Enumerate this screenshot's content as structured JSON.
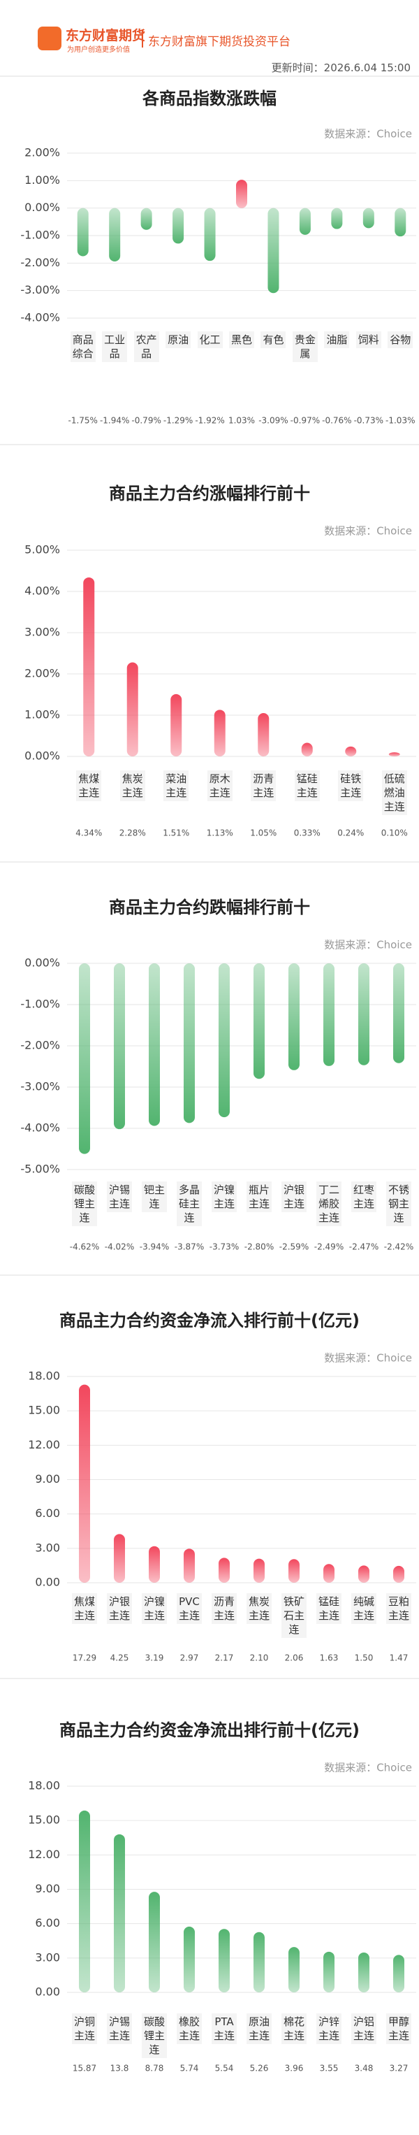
{
  "header": {
    "brand": "东方财富期货",
    "slogan": "为用户创造更多价值",
    "platform": "东方财富旗下期货投资平台",
    "update_time": "更新时间：2026.6.04 15:00"
  },
  "chart_data": [
    {
      "type": "bar",
      "title": "各商品指数涨跌幅",
      "source": "数据来源：Choice",
      "categories": [
        "商品综合",
        "工业品",
        "农产品",
        "原油",
        "化工",
        "黑色",
        "有色",
        "贵金属",
        "油脂",
        "饲料",
        "谷物"
      ],
      "values": [
        -1.75,
        -1.94,
        -0.79,
        -1.29,
        -1.92,
        1.03,
        -3.09,
        -0.97,
        -0.76,
        -0.73,
        -1.03
      ],
      "value_labels": [
        "-1.75%",
        "-1.94%",
        "-0.79%",
        "-1.29%",
        "-1.92%",
        "1.03%",
        "-3.09%",
        "-0.97%",
        "-0.76%",
        "-0.73%",
        "-1.03%"
      ],
      "colors": [
        "#52b46f",
        "#52b46f",
        "#52b46f",
        "#52b46f",
        "#52b46f",
        "#f2475d",
        "#52b46f",
        "#52b46f",
        "#52b46f",
        "#52b46f",
        "#52b46f"
      ],
      "ylim": [
        -4,
        2
      ],
      "yticks": [
        {
          "value": 2,
          "label": "2.00%"
        },
        {
          "value": 1,
          "label": "1.00%"
        },
        {
          "value": 0,
          "label": "0.00%"
        },
        {
          "value": -1,
          "label": "-1.00%"
        },
        {
          "value": -2,
          "label": "-2.00%"
        },
        {
          "value": -3,
          "label": "-3.00%"
        },
        {
          "value": -4,
          "label": "-4.00%"
        }
      ],
      "grid": true
    },
    {
      "type": "bar",
      "title": "商品主力合约涨幅排行前十",
      "source": "数据来源：Choice",
      "categories": [
        "焦煤主连",
        "焦炭主连",
        "菜油主连",
        "原木主连",
        "沥青主连",
        "锰硅主连",
        "硅铁主连",
        "低硫燃油主连"
      ],
      "values": [
        4.34,
        2.28,
        1.51,
        1.13,
        1.05,
        0.33,
        0.24,
        0.1
      ],
      "value_labels": [
        "4.34%",
        "2.28%",
        "1.51%",
        "1.13%",
        "1.05%",
        "0.33%",
        "0.24%",
        "0.10%"
      ],
      "color": "#f2475d",
      "ylim": [
        0,
        5
      ],
      "yticks": [
        {
          "value": 5,
          "label": "5.00%"
        },
        {
          "value": 4,
          "label": "4.00%"
        },
        {
          "value": 3,
          "label": "3.00%"
        },
        {
          "value": 2,
          "label": "2.00%"
        },
        {
          "value": 1,
          "label": "1.00%"
        },
        {
          "value": 0,
          "label": "0.00%"
        }
      ],
      "grid": true
    },
    {
      "type": "bar",
      "title": "商品主力合约跌幅排行前十",
      "source": "数据来源：Choice",
      "categories": [
        "碳酸锂主连",
        "沪锡主连",
        "钯主连",
        "多晶硅主连",
        "沪镍主连",
        "瓶片主连",
        "沪银主连",
        "丁二烯胶主连",
        "红枣主连",
        "不锈钢主连"
      ],
      "values": [
        -4.62,
        -4.02,
        -3.94,
        -3.87,
        -3.73,
        -2.8,
        -2.59,
        -2.49,
        -2.47,
        -2.42
      ],
      "value_labels": [
        "-4.62%",
        "-4.02%",
        "-3.94%",
        "-3.87%",
        "-3.73%",
        "-2.80%",
        "-2.59%",
        "-2.49%",
        "-2.47%",
        "-2.42%"
      ],
      "color": "#52b46f",
      "ylim": [
        -5,
        0
      ],
      "yticks": [
        {
          "value": 0,
          "label": "0.00%"
        },
        {
          "value": -1,
          "label": "-1.00%"
        },
        {
          "value": -2,
          "label": "-2.00%"
        },
        {
          "value": -3,
          "label": "-3.00%"
        },
        {
          "value": -4,
          "label": "-4.00%"
        },
        {
          "value": -5,
          "label": "-5.00%"
        }
      ],
      "grid": true
    },
    {
      "type": "bar",
      "title": "商品主力合约资金净流入排行前十(亿元)",
      "source": "数据来源：Choice",
      "categories": [
        "焦煤主连",
        "沪银主连",
        "沪镍主连",
        "PVC主连",
        "沥青主连",
        "焦炭主连",
        "铁矿石主连",
        "锰硅主连",
        "纯碱主连",
        "豆粕主连"
      ],
      "values": [
        17.29,
        4.25,
        3.19,
        2.97,
        2.17,
        2.1,
        2.06,
        1.63,
        1.5,
        1.47
      ],
      "value_labels": [
        "17.29",
        "4.25",
        "3.19",
        "2.97",
        "2.17",
        "2.10",
        "2.06",
        "1.63",
        "1.50",
        "1.47"
      ],
      "color": "#f2475d",
      "ylim": [
        0,
        18
      ],
      "yticks": [
        {
          "value": 18,
          "label": "18.00"
        },
        {
          "value": 15,
          "label": "15.00"
        },
        {
          "value": 12,
          "label": "12.00"
        },
        {
          "value": 9,
          "label": "9.00"
        },
        {
          "value": 6,
          "label": "6.00"
        },
        {
          "value": 3,
          "label": "3.00"
        },
        {
          "value": 0,
          "label": "0.00"
        }
      ],
      "grid": true
    },
    {
      "type": "bar",
      "title": "商品主力合约资金净流出排行前十(亿元)",
      "source": "数据来源：Choice",
      "categories": [
        "沪铜主连",
        "沪锡主连",
        "碳酸锂主连",
        "橡胶主连",
        "PTA主连",
        "原油主连",
        "棉花主连",
        "沪锌主连",
        "沪铝主连",
        "甲醇主连"
      ],
      "values": [
        15.87,
        13.8,
        8.78,
        5.74,
        5.54,
        5.26,
        3.96,
        3.55,
        3.48,
        3.27
      ],
      "value_labels": [
        "15.87",
        "13.8",
        "8.78",
        "5.74",
        "5.54",
        "5.26",
        "3.96",
        "3.55",
        "3.48",
        "3.27"
      ],
      "color": "#52b46f",
      "ylim": [
        0,
        18
      ],
      "yticks": [
        {
          "value": 18,
          "label": "18.00"
        },
        {
          "value": 15,
          "label": "15.00"
        },
        {
          "value": 12,
          "label": "12.00"
        },
        {
          "value": 9,
          "label": "9.00"
        },
        {
          "value": 6,
          "label": "6.00"
        },
        {
          "value": 3,
          "label": "3.00"
        },
        {
          "value": 0,
          "label": "0.00"
        }
      ],
      "grid": true
    }
  ]
}
